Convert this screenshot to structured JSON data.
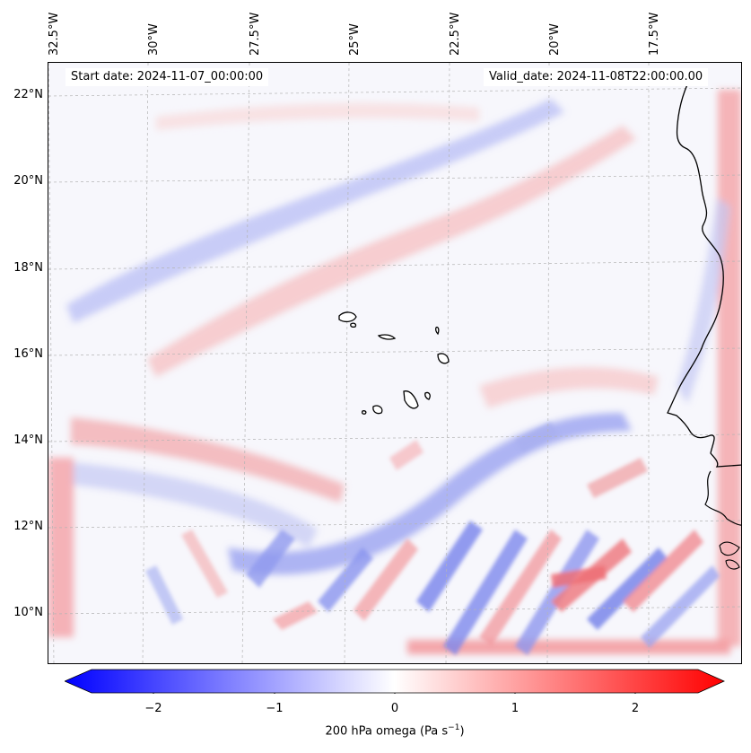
{
  "map": {
    "start_date": "Start date: 2024-11-07_00:00:00",
    "valid_date": "Valid_date: 2024-11-08T22:00:00.00",
    "lon_labels": [
      "32.5°W",
      "30°W",
      "27.5°W",
      "25°W",
      "22.5°W",
      "20°W",
      "17.5°W"
    ],
    "lat_labels": [
      "22°N",
      "20°N",
      "18°N",
      "16°N",
      "14°N",
      "12°N",
      "10°N"
    ],
    "field": "200 hPa omega",
    "colors": {
      "negative": "#0000ff",
      "zero": "#ffffff",
      "positive": "#ff0000",
      "coast": "#000000",
      "grid": "#b4b4b4"
    }
  },
  "colorbar": {
    "ticks": [
      "−2",
      "−1",
      "0",
      "1",
      "2"
    ],
    "tick_values": [
      -2,
      -1,
      0,
      1,
      2
    ],
    "range": [
      -2.6,
      2.6
    ],
    "label_main": "200 hPa omega (Pa s",
    "label_sup": "−1",
    "label_end": ")"
  }
}
